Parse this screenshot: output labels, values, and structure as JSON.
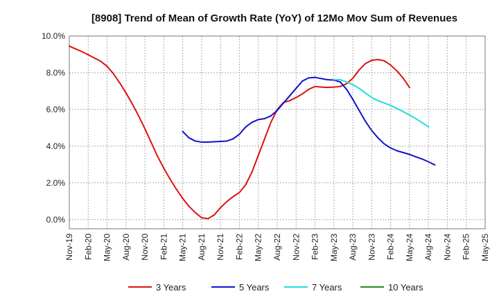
{
  "chart_data": {
    "type": "line",
    "title": "[8908]  Trend of Mean of Growth Rate (YoY) of 12Mo Mov Sum of Revenues",
    "xlabel": "",
    "ylabel": "",
    "ylim": [
      -0.5,
      10.0
    ],
    "yticks": [
      0.0,
      2.0,
      4.0,
      6.0,
      8.0,
      10.0
    ],
    "ytick_labels": [
      "0.0%",
      "2.0%",
      "4.0%",
      "6.0%",
      "8.0%",
      "10.0%"
    ],
    "x_labels": [
      "Nov-19",
      "Feb-20",
      "May-20",
      "Aug-20",
      "Nov-20",
      "Feb-21",
      "May-21",
      "Aug-21",
      "Nov-21",
      "Feb-22",
      "May-22",
      "Aug-22",
      "Nov-22",
      "Feb-23",
      "May-23",
      "Aug-23",
      "Nov-23",
      "Feb-24",
      "May-24",
      "Aug-24",
      "Nov-24",
      "Feb-25",
      "May-25"
    ],
    "x_months": 66,
    "grid": true,
    "legend_position": "bottom",
    "series": [
      {
        "name": "3 Years",
        "color": "#dd1111",
        "start": 0,
        "values": [
          9.45,
          9.3,
          9.15,
          8.98,
          8.8,
          8.62,
          8.35,
          7.95,
          7.45,
          6.9,
          6.3,
          5.65,
          4.95,
          4.2,
          3.45,
          2.8,
          2.2,
          1.65,
          1.15,
          0.72,
          0.38,
          0.1,
          0.05,
          0.25,
          0.65,
          0.98,
          1.25,
          1.48,
          1.9,
          2.6,
          3.5,
          4.4,
          5.3,
          6.0,
          6.38,
          6.48,
          6.65,
          6.85,
          7.1,
          7.25,
          7.22,
          7.2,
          7.22,
          7.25,
          7.4,
          7.7,
          8.15,
          8.5,
          8.68,
          8.72,
          8.65,
          8.42,
          8.1,
          7.7,
          7.2
        ]
      },
      {
        "name": "5 Years",
        "color": "#1111cc",
        "start": 18,
        "values": [
          4.8,
          4.45,
          4.28,
          4.22,
          4.22,
          4.24,
          4.26,
          4.28,
          4.4,
          4.65,
          5.05,
          5.3,
          5.45,
          5.5,
          5.65,
          5.95,
          6.35,
          6.75,
          7.15,
          7.55,
          7.72,
          7.75,
          7.68,
          7.62,
          7.6,
          7.5,
          7.1,
          6.55,
          5.95,
          5.35,
          4.85,
          4.45,
          4.12,
          3.9,
          3.75,
          3.65,
          3.55,
          3.42,
          3.3,
          3.15,
          2.98
        ]
      },
      {
        "name": "7 Years",
        "color": "#22dddd",
        "start": 42,
        "values": [
          7.62,
          7.62,
          7.5,
          7.35,
          7.15,
          6.9,
          6.65,
          6.48,
          6.35,
          6.22,
          6.05,
          5.88,
          5.7,
          5.5,
          5.28,
          5.05
        ]
      },
      {
        "name": "10 Years",
        "color": "#228822",
        "start": 0,
        "values": []
      }
    ]
  }
}
